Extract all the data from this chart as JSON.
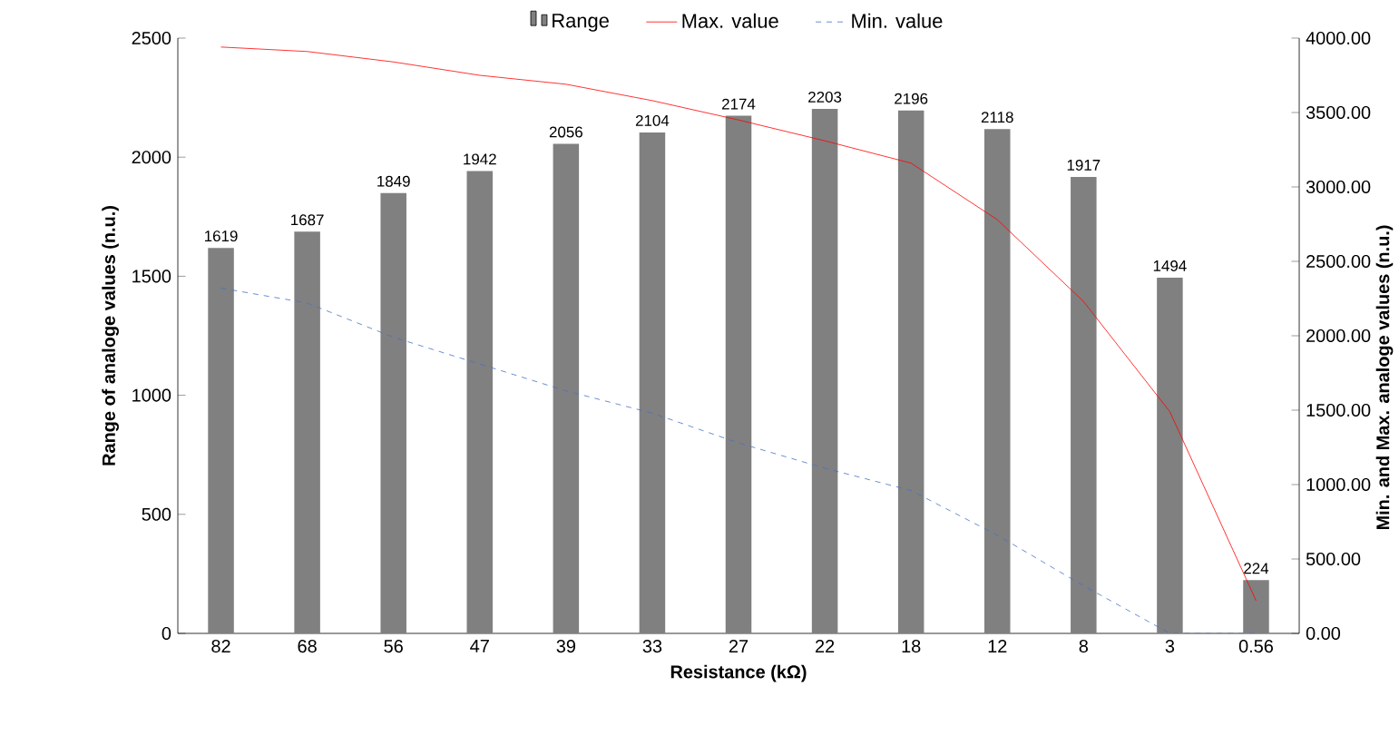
{
  "chart_data": {
    "type": "bar",
    "xlabel": "Resistance (kΩ)",
    "ylabel": "Range of analoge values (n.u.)",
    "y2label": "Min. and Max. analoge values (n.u.)",
    "categories": [
      "82",
      "68",
      "56",
      "47",
      "39",
      "33",
      "27",
      "22",
      "18",
      "12",
      "8",
      "3",
      "0.56"
    ],
    "series": [
      {
        "name": "Range",
        "color": "#808080",
        "values": [
          1619,
          1687,
          1849,
          1942,
          2056,
          2104,
          2174,
          2203,
          2196,
          2118,
          1917,
          1494,
          224
        ],
        "value_labels": [
          "1619",
          "1687",
          "1849",
          "1942",
          "2056",
          "2104",
          "2174",
          "2203",
          "2196",
          "2118",
          "1917",
          "1494",
          "224"
        ]
      },
      {
        "name": "Max. value",
        "type": "line",
        "axis": "y2",
        "color": "#ff0000",
        "line_style": "solid",
        "values": [
          3940,
          3910,
          3840,
          3750,
          3690,
          3580,
          3450,
          3310,
          3160,
          2780,
          2230,
          1490,
          220
        ]
      },
      {
        "name": "Min. value",
        "type": "line",
        "axis": "y2",
        "color": "#4472c4",
        "line_style": "dashed",
        "values": [
          2320,
          2220,
          1990,
          1810,
          1630,
          1480,
          1280,
          1110,
          960,
          660,
          320,
          0,
          0
        ]
      }
    ],
    "ylim": [
      0,
      2500
    ],
    "yticks": [
      0,
      500,
      1000,
      1500,
      2000,
      2500
    ],
    "y2lim": [
      0,
      4000
    ],
    "y2ticks": [
      {
        "value": 0,
        "label": "0.00"
      },
      {
        "value": 500,
        "label": "500.00"
      },
      {
        "value": 1000,
        "label": "1000.00"
      },
      {
        "value": 1500,
        "label": "1500.00"
      },
      {
        "value": 2000,
        "label": "2000.00"
      },
      {
        "value": 2500,
        "label": "2500.00"
      },
      {
        "value": 3000,
        "label": "3000.00"
      },
      {
        "value": 3500,
        "label": "3500.00"
      },
      {
        "value": 4000,
        "label": "4000.00"
      }
    ],
    "grid": false,
    "legend": "top",
    "marker": "none"
  }
}
